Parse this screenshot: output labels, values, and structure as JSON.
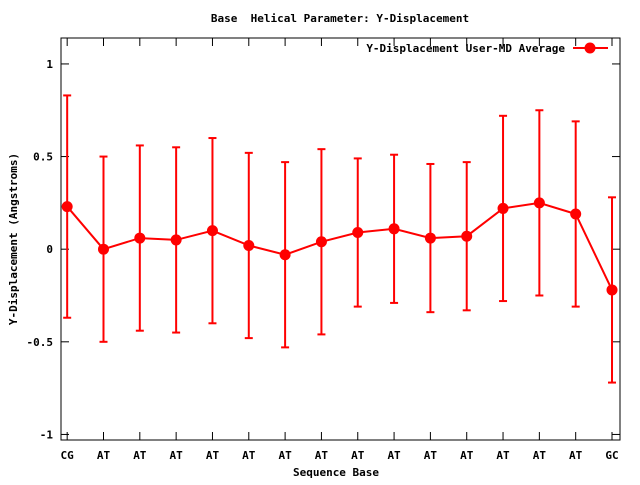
{
  "chart_data": {
    "type": "line",
    "title": "Base  Helical Parameter: Y-Displacement",
    "xlabel": "Sequence Base",
    "ylabel": "Y-Displacement (Angstroms)",
    "categories": [
      "CG",
      "AT",
      "AT",
      "AT",
      "AT",
      "AT",
      "AT",
      "AT",
      "AT",
      "AT",
      "AT",
      "AT",
      "AT",
      "AT",
      "AT",
      "GC"
    ],
    "yticks": [
      1,
      0.5,
      0,
      -0.5,
      -1
    ],
    "ytick_labels": [
      "1",
      "0.5",
      "0",
      "-0.5",
      "-1"
    ],
    "ylim": [
      -1.03,
      1.14
    ],
    "xlim": [
      -0.17,
      15.22
    ],
    "grid": false,
    "legend_position": "top-right",
    "series": [
      {
        "name": "Y-Displacement User-MD Average",
        "color": "#ff0000",
        "values": [
          0.23,
          0.0,
          0.06,
          0.05,
          0.1,
          0.02,
          -0.03,
          0.04,
          0.09,
          0.11,
          0.06,
          0.07,
          0.22,
          0.25,
          0.19,
          -0.22
        ],
        "error_upper": [
          0.83,
          0.5,
          0.56,
          0.55,
          0.6,
          0.52,
          0.47,
          0.54,
          0.49,
          0.51,
          0.46,
          0.47,
          0.72,
          0.75,
          0.69,
          0.28
        ],
        "error_lower": [
          -0.37,
          -0.5,
          -0.44,
          -0.45,
          -0.4,
          -0.48,
          -0.53,
          -0.46,
          -0.31,
          -0.29,
          -0.34,
          -0.33,
          -0.28,
          -0.25,
          -0.31,
          -0.72
        ]
      }
    ]
  }
}
